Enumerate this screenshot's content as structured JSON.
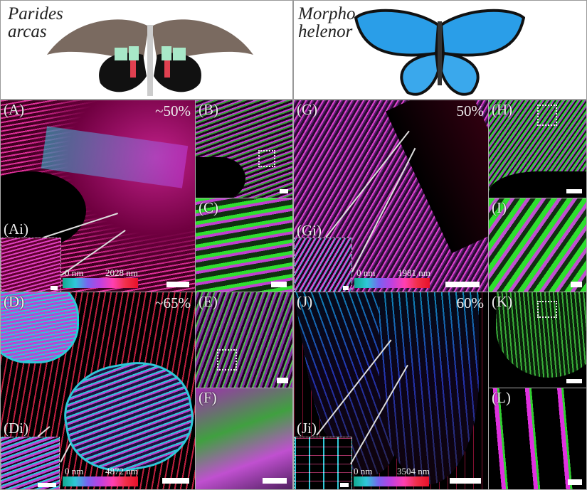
{
  "species": [
    {
      "name": "Parides arcas",
      "line1": "Parides",
      "line2": "arcas"
    },
    {
      "name": "Morpho helenor",
      "line1": "Morpho",
      "line2": "helenor"
    }
  ],
  "panels": {
    "A": "(A)",
    "Ai": "(Ai)",
    "B": "(B)",
    "C": "(C)",
    "D": "(D)",
    "Di": "(Di)",
    "E": "(E)",
    "F": "(F)",
    "G": "(G)",
    "Gi": "(Gi)",
    "H": "(H)",
    "I": "(I)",
    "J": "(J)",
    "Ji": "(Ji)",
    "K": "(K)",
    "L": "(L)"
  },
  "percentages": {
    "A": "~50%",
    "D": "~65%",
    "G": "50%",
    "J": "60%"
  },
  "colorbars": {
    "A": {
      "min": "0 nm",
      "max": "2028 nm"
    },
    "D": {
      "min": "0 nm",
      "max": "4872 nm"
    },
    "G": {
      "min": "0 nm",
      "max": "1981 nm"
    },
    "J": {
      "min": "0 nm",
      "max": "3504 nm"
    }
  },
  "colors": {
    "cyan": "#2ec8d8",
    "magenta": "#e040e0",
    "red": "#e8102a",
    "green": "#2ee02e",
    "morpho_blue": "#2a9ee8"
  }
}
